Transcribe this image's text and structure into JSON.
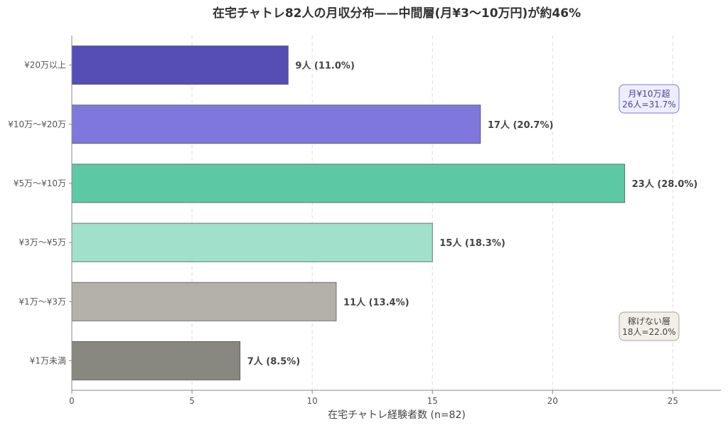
{
  "chart_data": {
    "type": "bar",
    "orientation": "horizontal",
    "title": "在宅チャトレ82人の月収分布——中間層(月¥3〜10万円)が約46%",
    "xlabel": "在宅チャトレ経験者数 (n=82)",
    "ylabel": "",
    "xlim": [
      0,
      27
    ],
    "xticks": [
      0,
      5,
      10,
      15,
      20,
      25
    ],
    "grid": "vertical dashed",
    "categories": [
      "¥20万以上",
      "¥10万〜¥20万",
      "¥5万〜¥10万",
      "¥3万〜¥5万",
      "¥1万〜¥3万",
      "¥1万未満"
    ],
    "values": [
      9,
      17,
      23,
      15,
      11,
      7
    ],
    "data_labels": [
      "9人 (11.0%)",
      "17人 (20.7%)",
      "23人 (28.0%)",
      "15人 (18.3%)",
      "11人 (13.4%)",
      "7人 (8.5%)"
    ],
    "colors": [
      "#554eb5",
      "#7e78dd",
      "#5cc9a4",
      "#a1e1cb",
      "#b4b1a9",
      "#888780"
    ],
    "annotations": [
      {
        "lines": [
          "月¥10万超",
          "26人=31.7%"
        ],
        "text_color": "#4a3f9f",
        "fill": "#eeedfe",
        "border": "#7f77dd"
      },
      {
        "lines": [
          "稼げない層",
          "18人=22.0%"
        ],
        "text_color": "#444444",
        "fill": "#f1efe8",
        "border": "#a8a59b"
      }
    ]
  }
}
